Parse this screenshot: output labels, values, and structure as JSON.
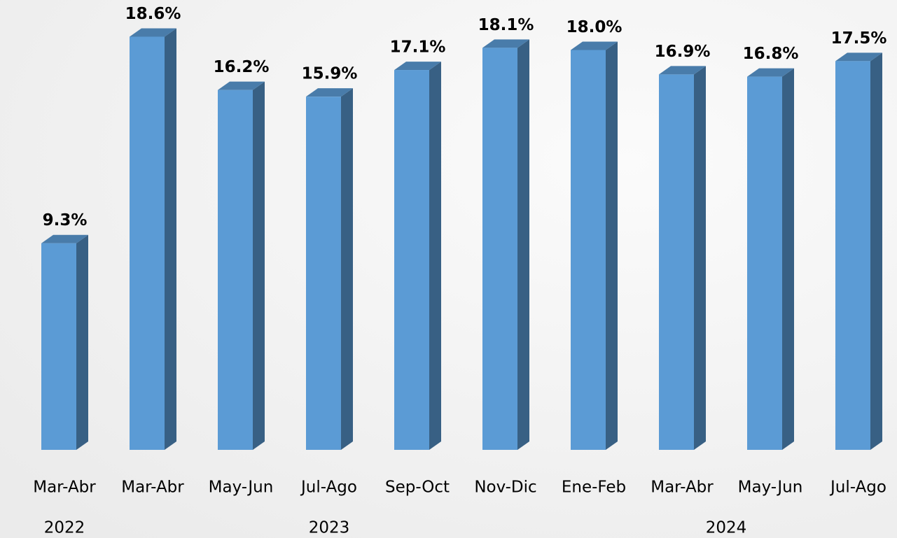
{
  "chart_data": {
    "type": "bar3d",
    "categories": [
      "Mar-Abr",
      "Mar-Abr",
      "May-Jun",
      "Jul-Ago",
      "Sep-Oct",
      "Nov-Dic",
      "Ene-Feb",
      "Mar-Abr",
      "May-Jun",
      "Jul-Ago"
    ],
    "category_groups": [
      "2022",
      "2023",
      "2023",
      "2023",
      "2023",
      "2023",
      "2024",
      "2024",
      "2024",
      "2024"
    ],
    "values": [
      9.3,
      18.6,
      16.2,
      15.9,
      17.1,
      18.1,
      18.0,
      16.9,
      16.8,
      17.5
    ],
    "value_labels": [
      "9.3%",
      "18.6%",
      "16.2%",
      "15.9%",
      "17.1%",
      "18.1%",
      "18.0%",
      "16.9%",
      "16.8%",
      "17.5%"
    ],
    "color": "#5b9bd5"
  }
}
